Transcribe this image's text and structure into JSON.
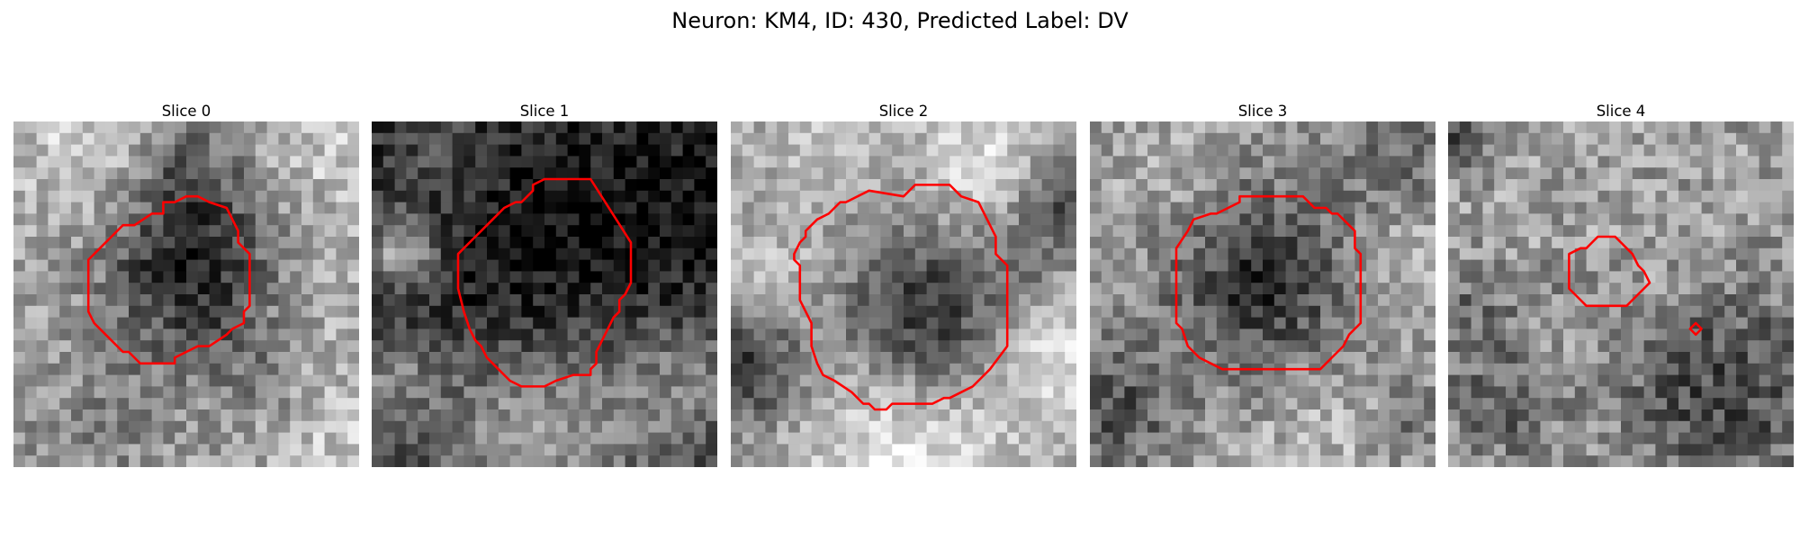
{
  "figure": {
    "title": "Neuron: KM4, ID: 430, Predicted Label: DV"
  },
  "panels": [
    {
      "title": "Slice 0",
      "grid": 30,
      "base": 0.66,
      "seed": 11,
      "noise": 0.18,
      "blobs": [
        {
          "x": 15.5,
          "y": 12.5,
          "r": 5.0,
          "amp": -0.55
        },
        {
          "x": 15.5,
          "y": 4.0,
          "r": 3.2,
          "amp": -0.22
        },
        {
          "x": 6.0,
          "y": 2.0,
          "r": 4.0,
          "amp": 0.15
        },
        {
          "x": 27.0,
          "y": 2.5,
          "r": 3.5,
          "amp": 0.12
        },
        {
          "x": 26.0,
          "y": 15.0,
          "r": 4.5,
          "amp": 0.06
        },
        {
          "x": 20.5,
          "y": 21.5,
          "r": 3.6,
          "amp": -0.12
        },
        {
          "x": 8.0,
          "y": 25.5,
          "r": 5.5,
          "amp": -0.14
        },
        {
          "x": 28.0,
          "y": 28.0,
          "r": 3.0,
          "amp": 0.12
        }
      ],
      "contours": [
        [
          [
            10.5,
            9.0
          ],
          [
            12.0,
            8.0
          ],
          [
            13.0,
            8.0
          ],
          [
            13.0,
            7.0
          ],
          [
            14.0,
            7.0
          ],
          [
            15.0,
            6.5
          ],
          [
            16.0,
            6.5
          ],
          [
            17.0,
            7.0
          ],
          [
            18.5,
            7.5
          ],
          [
            19.0,
            8.5
          ],
          [
            19.5,
            9.5
          ],
          [
            19.5,
            10.5
          ],
          [
            20.5,
            11.5
          ],
          [
            20.5,
            16.0
          ],
          [
            20.0,
            16.5
          ],
          [
            20.0,
            17.5
          ],
          [
            19.0,
            18.0
          ],
          [
            18.5,
            18.5
          ],
          [
            17.0,
            19.5
          ],
          [
            16.0,
            19.5
          ],
          [
            15.0,
            20.0
          ],
          [
            14.0,
            20.5
          ],
          [
            14.0,
            21.0
          ],
          [
            13.0,
            21.0
          ],
          [
            11.0,
            21.0
          ],
          [
            10.5,
            20.5
          ],
          [
            10.0,
            20.0
          ],
          [
            9.5,
            20.0
          ],
          [
            9.0,
            19.5
          ],
          [
            8.0,
            18.5
          ],
          [
            7.0,
            17.5
          ],
          [
            6.5,
            16.5
          ],
          [
            6.5,
            12.0
          ],
          [
            7.5,
            11.0
          ],
          [
            8.5,
            10.0
          ],
          [
            9.5,
            9.0
          ]
        ]
      ]
    },
    {
      "title": "Slice 1",
      "grid": 30,
      "base": 0.18,
      "seed": 23,
      "noise": 0.16,
      "blobs": [
        {
          "x": 14.0,
          "y": 13.0,
          "r": 7.0,
          "amp": -0.12
        },
        {
          "x": 26.0,
          "y": 8.0,
          "r": 5.5,
          "amp": -0.1
        },
        {
          "x": 14.0,
          "y": 27.5,
          "r": 6.5,
          "amp": 0.45
        },
        {
          "x": 27.0,
          "y": 23.0,
          "r": 4.5,
          "amp": 0.3
        },
        {
          "x": 2.5,
          "y": 11.0,
          "r": 2.2,
          "amp": 0.5
        },
        {
          "x": 1.5,
          "y": 22.0,
          "r": 3.0,
          "amp": 0.3
        },
        {
          "x": 6.0,
          "y": 3.0,
          "r": 3.0,
          "amp": 0.14
        }
      ],
      "contours": [
        [
          [
            12.5,
            7.0
          ],
          [
            13.0,
            7.0
          ],
          [
            14.0,
            6.0
          ],
          [
            14.0,
            5.5
          ],
          [
            15.0,
            5.0
          ],
          [
            16.0,
            5.0
          ],
          [
            16.5,
            5.0
          ],
          [
            19.0,
            5.0
          ],
          [
            22.5,
            10.5
          ],
          [
            22.5,
            14.0
          ],
          [
            22.0,
            15.0
          ],
          [
            21.5,
            15.5
          ],
          [
            21.5,
            16.5
          ],
          [
            21.0,
            17.0
          ],
          [
            20.5,
            18.0
          ],
          [
            20.0,
            19.0
          ],
          [
            19.5,
            20.0
          ],
          [
            19.5,
            21.0
          ],
          [
            19.0,
            21.5
          ],
          [
            19.0,
            22.0
          ],
          [
            17.5,
            22.0
          ],
          [
            16.0,
            22.5
          ],
          [
            15.0,
            23.0
          ],
          [
            14.5,
            23.0
          ],
          [
            13.0,
            23.0
          ],
          [
            12.0,
            22.5
          ],
          [
            11.5,
            22.0
          ],
          [
            11.0,
            21.5
          ],
          [
            10.0,
            20.5
          ],
          [
            9.5,
            19.5
          ],
          [
            9.0,
            19.0
          ],
          [
            8.5,
            18.0
          ],
          [
            8.0,
            16.5
          ],
          [
            7.5,
            14.5
          ],
          [
            7.5,
            11.5
          ],
          [
            8.5,
            10.5
          ],
          [
            9.5,
            9.5
          ],
          [
            10.5,
            8.5
          ],
          [
            11.5,
            7.5
          ]
        ]
      ]
    },
    {
      "title": "Slice 2",
      "grid": 30,
      "base": 0.64,
      "seed": 37,
      "noise": 0.15,
      "blobs": [
        {
          "x": 17.0,
          "y": 17.0,
          "r": 5.2,
          "amp": -0.48
        },
        {
          "x": 22.0,
          "y": 3.5,
          "r": 4.0,
          "amp": 0.24
        },
        {
          "x": 8.0,
          "y": 2.0,
          "r": 3.5,
          "amp": 0.12
        },
        {
          "x": 28.5,
          "y": 7.0,
          "r": 2.8,
          "amp": -0.35
        },
        {
          "x": 1.5,
          "y": 21.5,
          "r": 3.5,
          "amp": -0.42
        },
        {
          "x": 15.0,
          "y": 28.0,
          "r": 6.5,
          "amp": 0.28
        },
        {
          "x": 27.5,
          "y": 20.0,
          "r": 4.0,
          "amp": 0.24
        },
        {
          "x": 4.5,
          "y": 13.0,
          "r": 3.0,
          "amp": 0.12
        },
        {
          "x": 25.5,
          "y": 13.0,
          "r": 2.5,
          "amp": -0.14
        }
      ],
      "contours": [
        [
          [
            10.0,
            7.0
          ],
          [
            12.0,
            6.0
          ],
          [
            15.0,
            6.5
          ],
          [
            16.0,
            5.5
          ],
          [
            17.0,
            5.5
          ],
          [
            18.0,
            5.5
          ],
          [
            18.5,
            5.5
          ],
          [
            19.0,
            5.5
          ],
          [
            20.0,
            6.5
          ],
          [
            21.5,
            7.0
          ],
          [
            22.0,
            8.0
          ],
          [
            22.5,
            9.0
          ],
          [
            23.0,
            10.0
          ],
          [
            23.0,
            11.5
          ],
          [
            24.0,
            12.5
          ],
          [
            24.0,
            19.5
          ],
          [
            22.5,
            21.5
          ],
          [
            22.0,
            22.0
          ],
          [
            21.0,
            23.0
          ],
          [
            20.0,
            23.5
          ],
          [
            19.0,
            24.0
          ],
          [
            18.5,
            24.0
          ],
          [
            17.5,
            24.5
          ],
          [
            16.0,
            24.5
          ],
          [
            14.0,
            24.5
          ],
          [
            13.5,
            25.0
          ],
          [
            12.5,
            25.0
          ],
          [
            12.0,
            24.5
          ],
          [
            11.5,
            24.5
          ],
          [
            10.5,
            23.5
          ],
          [
            9.0,
            22.5
          ],
          [
            8.0,
            22.0
          ],
          [
            7.5,
            21.0
          ],
          [
            7.0,
            19.5
          ],
          [
            7.0,
            17.5
          ],
          [
            6.5,
            16.5
          ],
          [
            6.0,
            15.5
          ],
          [
            6.0,
            14.0
          ],
          [
            6.0,
            13.0
          ],
          [
            6.0,
            12.5
          ],
          [
            5.5,
            12.0
          ],
          [
            5.5,
            11.5
          ],
          [
            6.0,
            10.5
          ],
          [
            6.5,
            10.0
          ],
          [
            6.5,
            9.5
          ],
          [
            7.0,
            9.0
          ],
          [
            7.5,
            8.5
          ],
          [
            8.5,
            8.0
          ],
          [
            9.5,
            7.0
          ]
        ]
      ]
    },
    {
      "title": "Slice 3",
      "grid": 30,
      "base": 0.6,
      "seed": 53,
      "noise": 0.18,
      "blobs": [
        {
          "x": 15.0,
          "y": 14.0,
          "r": 5.5,
          "amp": -0.42
        },
        {
          "x": 2.0,
          "y": 25.0,
          "r": 4.0,
          "amp": -0.28
        },
        {
          "x": 26.0,
          "y": 2.5,
          "r": 3.5,
          "amp": -0.2
        },
        {
          "x": 27.5,
          "y": 13.0,
          "r": 3.5,
          "amp": 0.15
        },
        {
          "x": 20.0,
          "y": 27.0,
          "r": 5.5,
          "amp": 0.12
        },
        {
          "x": 7.0,
          "y": 4.5,
          "r": 3.5,
          "amp": 0.1
        },
        {
          "x": 28.5,
          "y": 26.0,
          "r": 2.5,
          "amp": -0.18
        }
      ],
      "contours": [
        [
          [
            9.0,
            8.5
          ],
          [
            10.5,
            8.0
          ],
          [
            11.0,
            8.0
          ],
          [
            12.0,
            7.5
          ],
          [
            13.0,
            7.0
          ],
          [
            13.0,
            6.5
          ],
          [
            14.0,
            6.5
          ],
          [
            18.5,
            6.5
          ],
          [
            19.5,
            7.5
          ],
          [
            20.5,
            7.5
          ],
          [
            21.0,
            8.0
          ],
          [
            21.5,
            8.0
          ],
          [
            22.0,
            8.5
          ],
          [
            23.0,
            9.5
          ],
          [
            23.0,
            10.5
          ],
          [
            23.0,
            11.0
          ],
          [
            23.5,
            11.5
          ],
          [
            23.5,
            17.5
          ],
          [
            23.0,
            18.0
          ],
          [
            22.5,
            18.5
          ],
          [
            22.0,
            19.5
          ],
          [
            21.0,
            20.5
          ],
          [
            20.0,
            21.5
          ],
          [
            11.5,
            21.5
          ],
          [
            10.5,
            21.0
          ],
          [
            9.5,
            20.5
          ],
          [
            8.5,
            19.5
          ],
          [
            8.0,
            18.0
          ],
          [
            7.5,
            17.5
          ],
          [
            7.5,
            16.5
          ],
          [
            7.5,
            11.0
          ],
          [
            8.5,
            9.5
          ]
        ]
      ]
    },
    {
      "title": "Slice 4",
      "grid": 30,
      "base": 0.62,
      "seed": 71,
      "noise": 0.2,
      "blobs": [
        {
          "x": 24.0,
          "y": 23.5,
          "r": 6.5,
          "amp": -0.35
        },
        {
          "x": 2.0,
          "y": 16.0,
          "r": 3.0,
          "amp": -0.18
        },
        {
          "x": 4.5,
          "y": 24.5,
          "r": 3.5,
          "amp": -0.24
        },
        {
          "x": 15.0,
          "y": 15.0,
          "r": 5.0,
          "amp": 0.06
        },
        {
          "x": 11.5,
          "y": 14.0,
          "r": 2.5,
          "amp": -0.1
        },
        {
          "x": 0.5,
          "y": 1.0,
          "r": 2.0,
          "amp": -0.3
        }
      ],
      "contours": [
        [
          [
            10.5,
            11.5
          ],
          [
            11.5,
            11.0
          ],
          [
            12.0,
            11.0
          ],
          [
            12.5,
            10.5
          ],
          [
            13.0,
            10.0
          ],
          [
            14.5,
            10.0
          ],
          [
            15.0,
            10.5
          ],
          [
            15.5,
            11.0
          ],
          [
            16.0,
            11.5
          ],
          [
            16.5,
            12.5
          ],
          [
            17.0,
            13.0
          ],
          [
            17.5,
            14.0
          ],
          [
            17.0,
            14.5
          ],
          [
            16.5,
            15.0
          ],
          [
            16.0,
            15.5
          ],
          [
            15.5,
            16.0
          ],
          [
            13.0,
            16.0
          ],
          [
            12.0,
            16.0
          ],
          [
            11.5,
            15.5
          ],
          [
            11.0,
            15.0
          ],
          [
            10.5,
            14.5
          ],
          [
            10.5,
            13.5
          ],
          [
            10.5,
            12.5
          ]
        ],
        [
          [
            21.5,
            17.5
          ],
          [
            22.0,
            18.0
          ],
          [
            21.5,
            18.5
          ],
          [
            21.0,
            18.0
          ]
        ]
      ]
    }
  ]
}
